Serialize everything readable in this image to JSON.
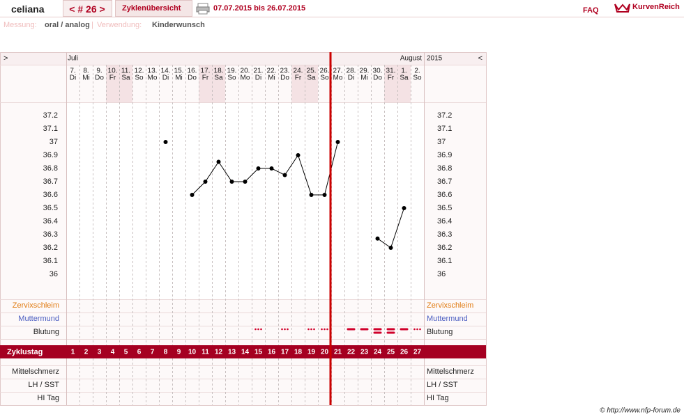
{
  "header": {
    "user": "celiana",
    "cycle": "< # 26 >",
    "tab": "Zyklenübersicht",
    "range": "07.07.2015 bis 26.07.2015",
    "faq": "FAQ",
    "logo": "KurvenReich"
  },
  "meta": {
    "measure_label": "Messung:",
    "measure": "oral / analog",
    "separator": "|",
    "use_label": "Verwendung:",
    "use": "Kinderwunsch"
  },
  "rows": [
    "Zervixschleim",
    "Muttermund",
    "Blutung",
    "Zyklustag",
    "Mittelschmerz",
    "LH / SST",
    "HI Tag"
  ],
  "footer": "© http://www.nfp-forum.de",
  "chart_data": {
    "type": "line",
    "nav_left": ">",
    "nav_right": "<",
    "months": [
      "Juli",
      "August"
    ],
    "year": "2015",
    "categories": [
      "7.",
      "8.",
      "9.",
      "10.",
      "11.",
      "12.",
      "13.",
      "14.",
      "15.",
      "16.",
      "17.",
      "18.",
      "19.",
      "20.",
      "21.",
      "22.",
      "23.",
      "24.",
      "25.",
      "26.",
      "27.",
      "28.",
      "29.",
      "30.",
      "31.",
      "1.",
      "2."
    ],
    "weekdays": [
      "Di",
      "Mi",
      "Do",
      "Fr",
      "Sa",
      "So",
      "Mo",
      "Di",
      "Mi",
      "Do",
      "Fr",
      "Sa",
      "So",
      "Mo",
      "Di",
      "Mi",
      "Do",
      "Fr",
      "Sa",
      "So",
      "Mo",
      "Di",
      "Mi",
      "Do",
      "Fr",
      "Sa",
      "So"
    ],
    "cycle_days": [
      1,
      2,
      3,
      4,
      5,
      6,
      7,
      8,
      9,
      10,
      11,
      12,
      13,
      14,
      15,
      16,
      17,
      18,
      19,
      20,
      21,
      22,
      23,
      24,
      25,
      26,
      27
    ],
    "series": [
      {
        "color": "#000000",
        "values": [
          null,
          null,
          null,
          null,
          null,
          null,
          null,
          37,
          null,
          36.6,
          36.7,
          36.85,
          36.7,
          36.7,
          36.8,
          36.8,
          36.75,
          36.9,
          36.6,
          36.6,
          37,
          null,
          null,
          36.27,
          36.2,
          36.5,
          null
        ]
      }
    ],
    "ylim": [
      35.8,
      37.3
    ],
    "yticks": [
      37.2,
      37.1,
      37,
      36.9,
      36.8,
      36.7,
      36.6,
      36.5,
      36.4,
      36.3,
      36.2,
      36.1,
      36
    ]
  }
}
